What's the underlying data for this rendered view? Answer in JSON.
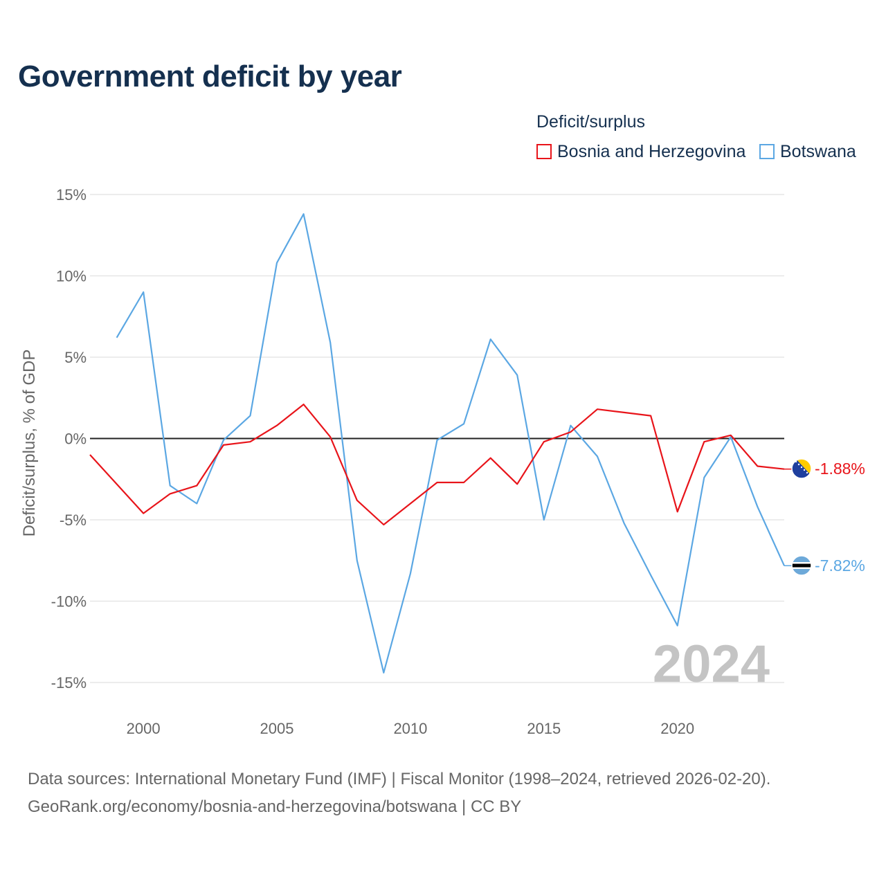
{
  "title": "Government deficit by year",
  "legend": {
    "title": "Deficit/surplus",
    "items": [
      {
        "name": "Bosnia and Herzegovina",
        "color": "#e8141a"
      },
      {
        "name": "Botswana",
        "color": "#5ba7e3"
      }
    ]
  },
  "footer": {
    "line1": "Data sources: International Monetary Fund (IMF) | Fiscal Monitor (1998–2024, retrieved 2026-02-20).",
    "line2": "GeoRank.org/economy/bosnia-and-herzegovina/botswana | CC BY"
  },
  "chart_data": {
    "type": "line",
    "title": "Government deficit by year",
    "xlabel": "",
    "ylabel": "Deficit/surplus, % of GDP",
    "xlim": [
      1998,
      2024
    ],
    "ylim": [
      -16.5,
      15
    ],
    "y_ticks": [
      15,
      10,
      5,
      0,
      -5,
      -10,
      -15
    ],
    "y_tick_labels": [
      "15%",
      "10%",
      "5%",
      "0%",
      "-5%",
      "-10%",
      "-15%"
    ],
    "x_ticks": [
      2000,
      2005,
      2010,
      2015,
      2020
    ],
    "x_tick_labels": [
      "2000",
      "2005",
      "2010",
      "2015",
      "2020"
    ],
    "year_label": "2024",
    "grid": true,
    "legend_position": "top-right",
    "series": [
      {
        "name": "Bosnia and Herzegovina",
        "color": "#e8141a",
        "flag": "bosnia-flag",
        "end_label": "-1.88%",
        "x": [
          1998,
          2000,
          2001,
          2002,
          2003,
          2004,
          2005,
          2006,
          2007,
          2008,
          2009,
          2010,
          2011,
          2012,
          2013,
          2014,
          2015,
          2016,
          2017,
          2018,
          2019,
          2020,
          2021,
          2022,
          2023,
          2024
        ],
        "values": [
          -1.0,
          -4.6,
          -3.4,
          -2.9,
          -0.4,
          -0.2,
          0.8,
          2.1,
          0.1,
          -3.8,
          -5.3,
          -4.0,
          -2.7,
          -2.7,
          -1.2,
          -2.8,
          -0.2,
          0.4,
          1.8,
          1.6,
          1.4,
          -4.5,
          -0.2,
          0.2,
          -1.7,
          -1.88
        ]
      },
      {
        "name": "Botswana",
        "color": "#5ba7e3",
        "flag": "botswana-flag",
        "end_label": "-7.82%",
        "x": [
          1999,
          2000,
          2001,
          2002,
          2003,
          2004,
          2005,
          2006,
          2007,
          2008,
          2009,
          2010,
          2011,
          2012,
          2013,
          2014,
          2015,
          2016,
          2017,
          2018,
          2019,
          2020,
          2021,
          2022,
          2023,
          2024
        ],
        "values": [
          6.2,
          9.0,
          -2.9,
          -4.0,
          -0.1,
          1.4,
          10.8,
          13.8,
          5.9,
          -7.5,
          -14.4,
          -8.3,
          -0.1,
          0.9,
          6.1,
          3.9,
          -5.0,
          0.8,
          -1.1,
          -5.2,
          -8.4,
          -11.5,
          -2.4,
          0.1,
          -4.2,
          -7.82
        ]
      }
    ]
  }
}
